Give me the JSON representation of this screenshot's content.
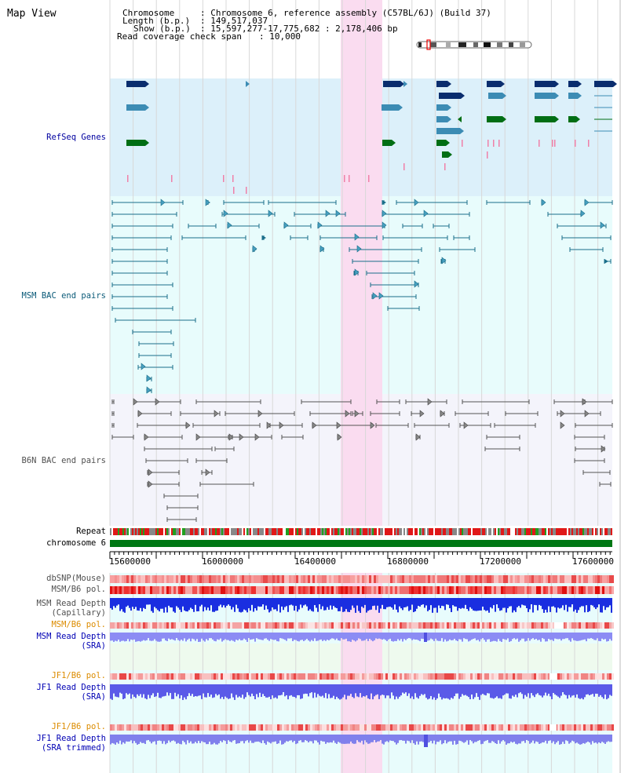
{
  "header": {
    "title": "Map View",
    "chromosome_key": "Chromosome",
    "chromosome_value": ": Chromosome 6, reference assembly (C57BL/6J) (Build 37)",
    "length_key": "Length (b.p.)",
    "length_value": ": 149,517,037",
    "show_key": "Show (b.p.)",
    "show_value": ": 15,597,277-17,775,682 : 2,178,406 bp",
    "coverage_key": "Read coverage check span",
    "coverage_value": ": 10,000"
  },
  "tracks": {
    "refseq": "RefSeq Genes",
    "msm_bac": "MSM BAC end pairs",
    "b6n_bac": "B6N BAC end pairs",
    "repeat": "Repeat",
    "chromosome": "chromosome 6",
    "dbsnp": "dbSNP(Mouse)",
    "msm_b6_pol": "MSM/B6 pol.",
    "msm_read_depth_cap_1": "MSM Read Depth",
    "msm_read_depth_cap_2": "(Capillary)",
    "msm_b6_pol_2": "MSM/B6 pol.",
    "msm_read_depth_sra_1": "MSM Read Depth",
    "msm_read_depth_sra_2": "(SRA)",
    "jf1_b6_pol": "JF1/B6 pol.",
    "jf1_read_depth_sra_1": "JF1 Read Depth",
    "jf1_read_depth_sra_2": "(SRA)",
    "jf1_b6_pol_2": "JF1/B6 pol.",
    "jf1_read_depth_trim_1": "JF1 Read Depth",
    "jf1_read_depth_trim_2": "(SRA trimmed)"
  },
  "ruler": {
    "ticks": [
      "15600000",
      "16000000",
      "16400000",
      "16800000",
      "17200000",
      "17600000"
    ]
  },
  "colors": {
    "refseq_bg": "#dcf0fa",
    "bac_bg": "#e8fcfc",
    "highlight": "#fadcf0",
    "gene_dark": "#0a2d6e",
    "gene_mid": "#3c8cb4",
    "gene_green": "#006e14",
    "chromosome_bar": "#007814",
    "msm_label": "#0a5a78",
    "b6n_label": "#505050",
    "refseq_label": "#0000a0",
    "orange_label": "#dc8c00",
    "blue_label": "#0000b4"
  }
}
